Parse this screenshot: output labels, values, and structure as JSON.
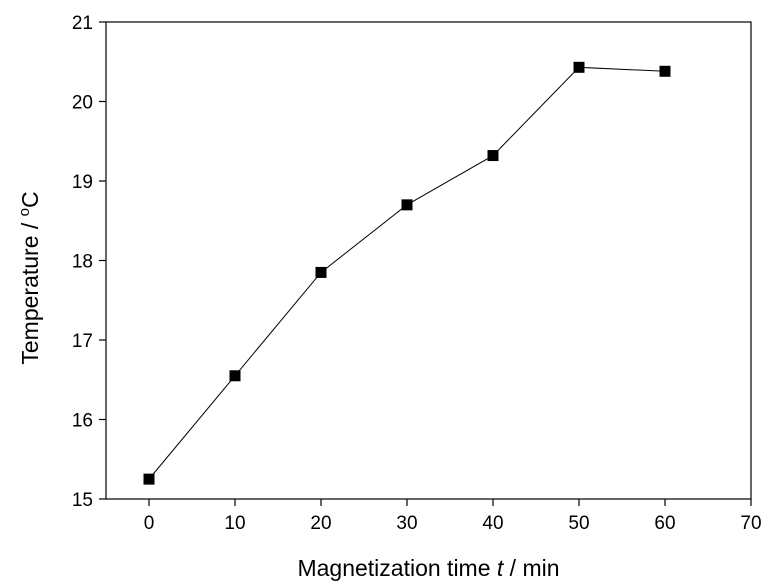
{
  "chart_data": {
    "type": "line",
    "title": "",
    "xlabel": "Magnetization time t / min",
    "xlabel_parts": {
      "before": "Magnetization time ",
      "italic": "t",
      "after": " / min"
    },
    "ylabel": "Temperature / °C",
    "ylabel_parts": {
      "before": "Temperature / ",
      "superscript": "o",
      "after": "C"
    },
    "xlim": [
      -5,
      70
    ],
    "ylim": [
      15,
      21
    ],
    "xticks": [
      0,
      10,
      20,
      30,
      40,
      50,
      60,
      70
    ],
    "yticks": [
      15,
      16,
      17,
      18,
      19,
      20,
      21
    ],
    "grid": false,
    "legend": "none",
    "series": [
      {
        "marker": "square",
        "color": "#000000",
        "x": [
          0,
          10,
          20,
          30,
          40,
          50,
          60
        ],
        "y": [
          15.25,
          16.55,
          17.85,
          18.7,
          19.32,
          20.43,
          20.38
        ]
      }
    ]
  }
}
